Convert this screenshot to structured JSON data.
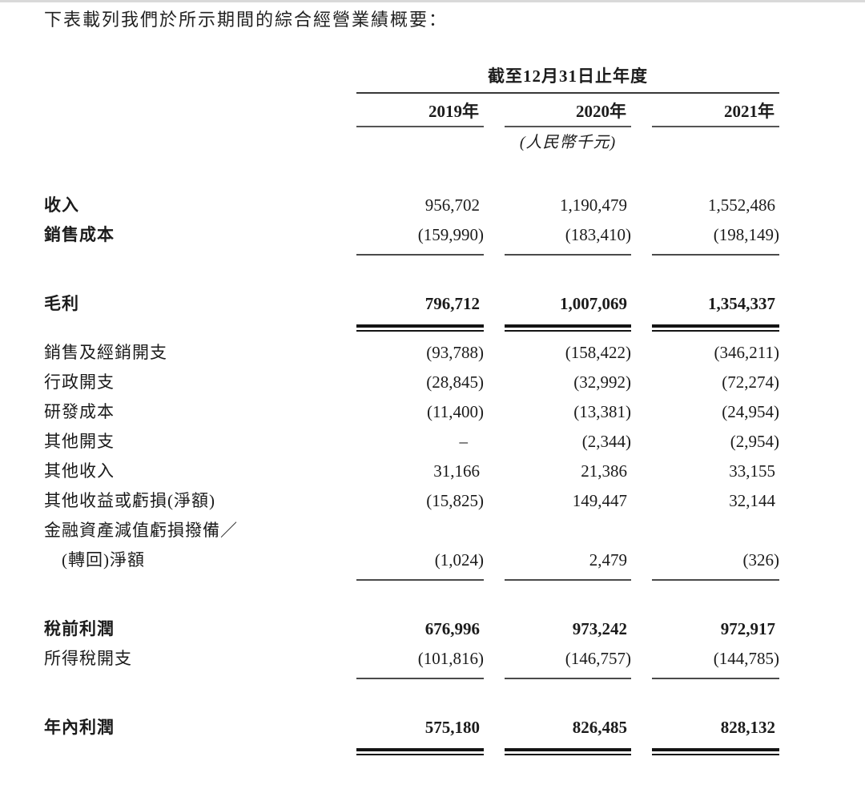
{
  "page": {
    "intro": "下表載列我們於所示期間的綜合經營業績概要："
  },
  "table": {
    "period_header": "截至12月31日止年度",
    "years": [
      "2019年",
      "2020年",
      "2021年"
    ],
    "unit_note": "(人民幣千元)",
    "rows": [
      {
        "label": "收入",
        "values": [
          "956,702",
          "1,190,479",
          "1,552,486"
        ],
        "label_bold": true
      },
      {
        "label": "銷售成本",
        "values": [
          "(159,990)",
          "(183,410)",
          "(198,149)"
        ],
        "label_bold": true,
        "underline": "single"
      },
      {
        "label": "毛利",
        "values": [
          "796,712",
          "1,007,069",
          "1,354,337"
        ],
        "label_bold": true,
        "values_bold": true,
        "underline": "double",
        "spacer_before": true
      },
      {
        "label": "銷售及經銷開支",
        "values": [
          "(93,788)",
          "(158,422)",
          "(346,211)"
        ],
        "spacer_before": "small"
      },
      {
        "label": "行政開支",
        "values": [
          "(28,845)",
          "(32,992)",
          "(72,274)"
        ]
      },
      {
        "label": "研發成本",
        "values": [
          "(11,400)",
          "(13,381)",
          "(24,954)"
        ]
      },
      {
        "label": "其他開支",
        "values": [
          "–",
          "(2,344)",
          "(2,954)"
        ]
      },
      {
        "label": "其他收入",
        "values": [
          "31,166",
          "21,386",
          "33,155"
        ]
      },
      {
        "label": "其他收益或虧損(淨額)",
        "values": [
          "(15,825)",
          "149,447",
          "32,144"
        ]
      },
      {
        "label": "金融資產減值虧損撥備／",
        "values": [
          "",
          "",
          ""
        ]
      },
      {
        "label": "(轉回)淨額",
        "values": [
          "(1,024)",
          "2,479",
          "(326)"
        ],
        "indent": true,
        "underline": "single"
      },
      {
        "label": "稅前利潤",
        "values": [
          "676,996",
          "973,242",
          "972,917"
        ],
        "label_bold": true,
        "values_bold": true,
        "spacer_before": true
      },
      {
        "label": "所得稅開支",
        "values": [
          "(101,816)",
          "(146,757)",
          "(144,785)"
        ],
        "underline": "single"
      },
      {
        "label": "年內利潤",
        "values": [
          "575,180",
          "826,485",
          "828,132"
        ],
        "label_bold": true,
        "values_bold": true,
        "underline": "double",
        "spacer_before": true
      }
    ]
  }
}
